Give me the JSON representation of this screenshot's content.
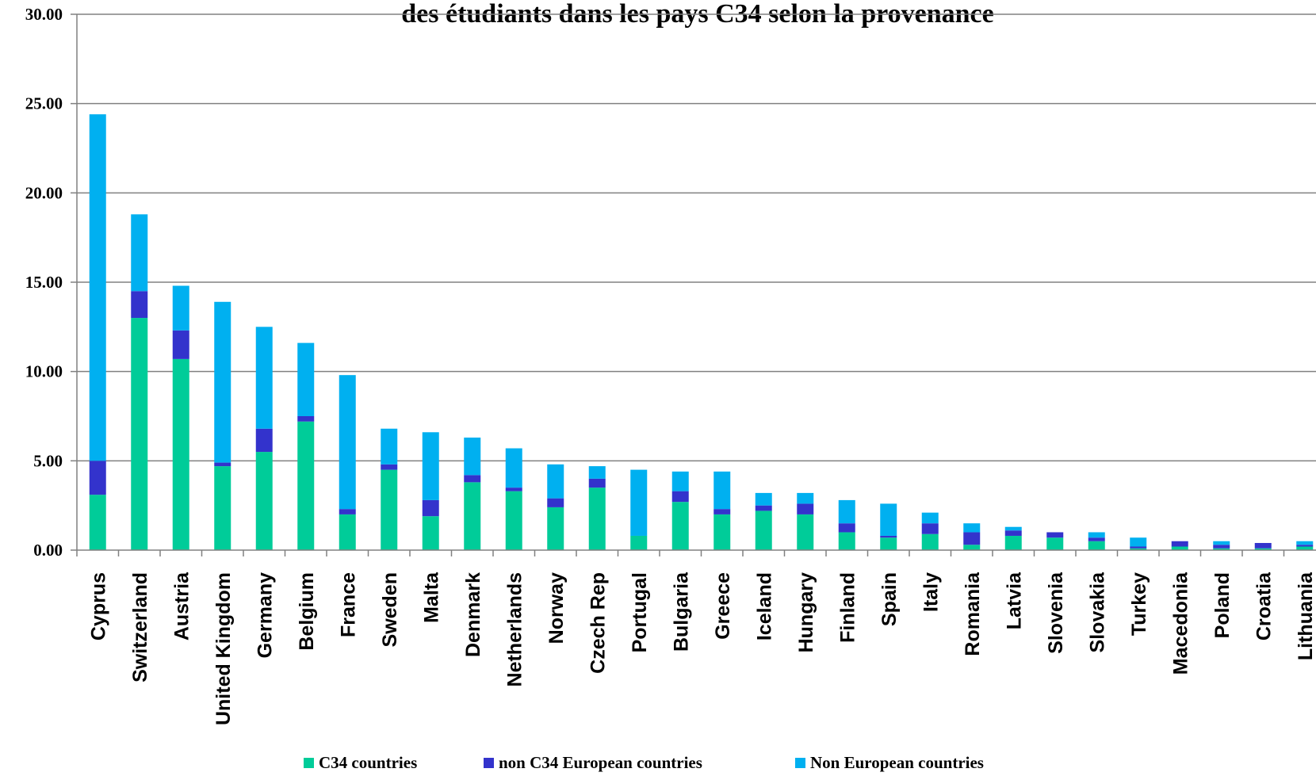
{
  "chart_data": {
    "type": "bar",
    "stacked": true,
    "title": "des étudiants dans les pays C34 selon la provenance",
    "ylim": [
      0,
      30
    ],
    "yticks": [
      "0.00",
      "5.00",
      "10.00",
      "15.00",
      "20.00",
      "25.00",
      "30.00"
    ],
    "grid": true,
    "legend_position": "bottom",
    "categories": [
      "Cyprus",
      "Switzerland",
      "Austria",
      "United Kingdom",
      "Germany",
      "Belgium",
      "France",
      "Sweden",
      "Malta",
      "Denmark",
      "Netherlands",
      "Norway",
      "Czech Rep",
      "Portugal",
      "Bulgaria",
      "Greece",
      "Iceland",
      "Hungary",
      "Finland",
      "Spain",
      "Italy",
      "Romania",
      "Latvia",
      "Slovenia",
      "Slovakia",
      "Turkey",
      "Macedonia",
      "Poland",
      "Croatia",
      "Lithuania"
    ],
    "series": [
      {
        "name": "C34 countries",
        "color": "#00CC99",
        "values": [
          3.1,
          13.0,
          10.7,
          4.7,
          5.5,
          7.2,
          2.0,
          4.5,
          1.9,
          3.8,
          3.3,
          2.4,
          3.5,
          0.8,
          2.7,
          2.0,
          2.2,
          2.0,
          1.0,
          0.7,
          0.9,
          0.3,
          0.8,
          0.7,
          0.5,
          0.1,
          0.2,
          0.1,
          0.1,
          0.2
        ]
      },
      {
        "name": "non C34 European countries",
        "color": "#3333CC",
        "values": [
          1.9,
          1.5,
          1.6,
          0.2,
          1.3,
          0.3,
          0.3,
          0.3,
          0.9,
          0.4,
          0.2,
          0.5,
          0.5,
          0.0,
          0.6,
          0.3,
          0.3,
          0.6,
          0.5,
          0.1,
          0.6,
          0.7,
          0.3,
          0.3,
          0.2,
          0.1,
          0.3,
          0.2,
          0.3,
          0.1
        ]
      },
      {
        "name": "Non European countries",
        "color": "#00B0F0",
        "values": [
          19.4,
          4.3,
          2.5,
          9.0,
          5.7,
          4.1,
          7.5,
          2.0,
          3.8,
          2.1,
          2.2,
          1.9,
          0.7,
          3.7,
          1.1,
          2.1,
          0.7,
          0.6,
          1.3,
          1.8,
          0.6,
          0.5,
          0.2,
          0.0,
          0.3,
          0.5,
          0.0,
          0.2,
          0.0,
          0.2
        ]
      }
    ]
  }
}
